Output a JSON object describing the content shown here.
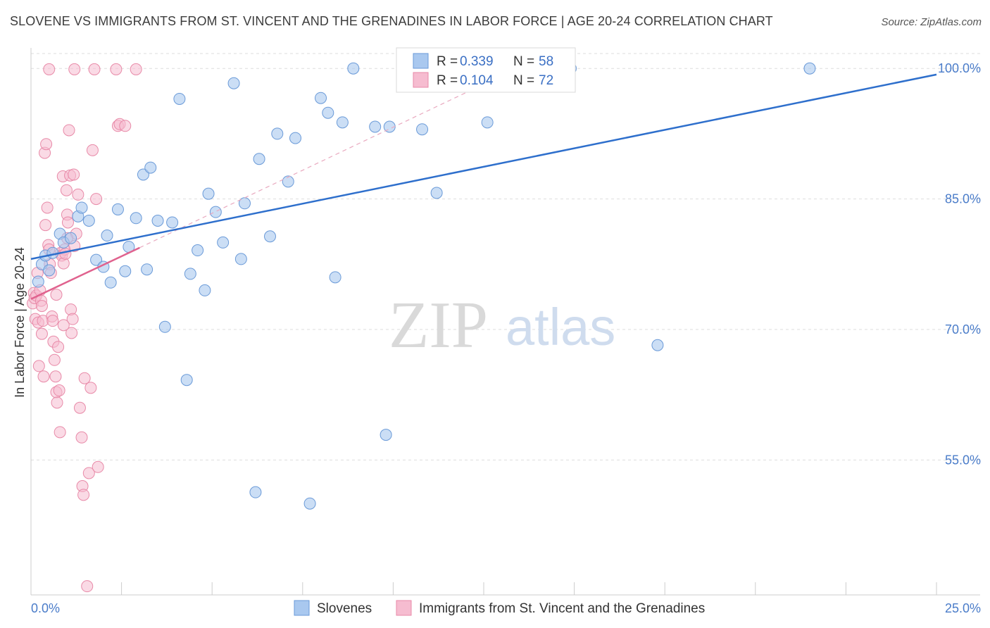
{
  "title": "SLOVENE VS IMMIGRANTS FROM ST. VINCENT AND THE GRENADINES IN LABOR FORCE | AGE 20-24 CORRELATION CHART",
  "source": "Source: ZipAtlas.com",
  "watermark": {
    "zip": "ZIP",
    "atlas": "atlas"
  },
  "colors": {
    "blue_fill": "#a9c8ef",
    "blue_stroke": "#6a9ad8",
    "blue_line": "#2e6fcc",
    "pink_fill": "#f6bcd0",
    "pink_stroke": "#e88aa8",
    "pink_line": "#e0628e",
    "axis_text": "#4a7cc9",
    "grid": "#dddddd"
  },
  "legend": {
    "rows": [
      {
        "r_label": "R = ",
        "r_value": "0.339",
        "n_label": "N = ",
        "n_value": "58"
      },
      {
        "r_label": "R = ",
        "r_value": "0.104",
        "n_label": "N = ",
        "n_value": "72"
      }
    ]
  },
  "bottom_legend": [
    "Slovenes",
    "Immigrants from St. Vincent and the Grenadines"
  ],
  "chart_data": {
    "type": "scatter",
    "title": "SLOVENE VS IMMIGRANTS FROM ST. VINCENT AND THE GRENADINES IN LABOR FORCE | AGE 20-24 CORRELATION CHART",
    "xlabel": "",
    "ylabel": "In Labor Force | Age 20-24",
    "xlim": [
      0,
      25
    ],
    "ylim": [
      39.5,
      102.2
    ],
    "x_tick_labels": [
      {
        "value": 0,
        "label": "0.0%"
      },
      {
        "value": 25,
        "label": "25.0%"
      }
    ],
    "y_ticks": [
      {
        "value": 55,
        "label": "55.0%"
      },
      {
        "value": 70,
        "label": "70.0%"
      },
      {
        "value": 85,
        "label": "85.0%"
      },
      {
        "value": 100,
        "label": "100.0%"
      }
    ],
    "x_minor_ticks": [
      2.5,
      5,
      7.5,
      10,
      12.5,
      15,
      17.5,
      20,
      22.5
    ],
    "series": [
      {
        "name": "Slovenes",
        "R": 0.339,
        "N": 58,
        "trend": {
          "x0": 0,
          "y0": 78.1,
          "x1": 25,
          "y1": 99.3
        },
        "points": [
          [
            0.2,
            75.5
          ],
          [
            0.3,
            77.5
          ],
          [
            0.4,
            78.5
          ],
          [
            0.5,
            76.8
          ],
          [
            0.6,
            78.8
          ],
          [
            0.8,
            81
          ],
          [
            0.9,
            80
          ],
          [
            1.1,
            80.5
          ],
          [
            1.3,
            83
          ],
          [
            1.4,
            84
          ],
          [
            1.6,
            82.5
          ],
          [
            1.8,
            78
          ],
          [
            2,
            77.2
          ],
          [
            2.1,
            80.8
          ],
          [
            2.2,
            75.4
          ],
          [
            2.4,
            83.8
          ],
          [
            2.6,
            76.7
          ],
          [
            2.7,
            79.5
          ],
          [
            2.9,
            82.8
          ],
          [
            3.1,
            87.8
          ],
          [
            3.3,
            88.6
          ],
          [
            3.2,
            76.9
          ],
          [
            3.5,
            82.5
          ],
          [
            3.7,
            70.3
          ],
          [
            3.9,
            82.3
          ],
          [
            4.1,
            96.5
          ],
          [
            4.3,
            64.2
          ],
          [
            4.4,
            76.4
          ],
          [
            4.6,
            79.1
          ],
          [
            4.8,
            74.5
          ],
          [
            4.9,
            85.6
          ],
          [
            5.1,
            83.5
          ],
          [
            5.3,
            80
          ],
          [
            5.6,
            98.3
          ],
          [
            5.8,
            78.1
          ],
          [
            5.9,
            84.5
          ],
          [
            6.2,
            51.3
          ],
          [
            6.3,
            89.6
          ],
          [
            6.6,
            80.7
          ],
          [
            6.8,
            92.5
          ],
          [
            7.1,
            87
          ],
          [
            7.3,
            92
          ],
          [
            7.7,
            50
          ],
          [
            8,
            96.6
          ],
          [
            8.2,
            94.9
          ],
          [
            8.4,
            76
          ],
          [
            8.6,
            93.8
          ],
          [
            8.9,
            100
          ],
          [
            9.5,
            93.3
          ],
          [
            9.9,
            93.3
          ],
          [
            9.8,
            57.9
          ],
          [
            10.8,
            93
          ],
          [
            11.2,
            85.7
          ],
          [
            12.2,
            100
          ],
          [
            12.6,
            93.8
          ],
          [
            14.9,
            100
          ],
          [
            17.3,
            68.2
          ],
          [
            21.5,
            100
          ]
        ]
      },
      {
        "name": "Immigrants from St. Vincent and the Grenadines",
        "R": 0.104,
        "N": 72,
        "trend": {
          "x0": 0,
          "y0": 73.5,
          "x1": 3,
          "y1": 79.4
        },
        "dashed_trend": {
          "x0": 3,
          "y0": 79.4,
          "x1": 12,
          "y1": 97.2
        },
        "points": [
          [
            0.05,
            73
          ],
          [
            0.08,
            74.2
          ],
          [
            0.1,
            73.6
          ],
          [
            0.12,
            71.2
          ],
          [
            0.15,
            73.9
          ],
          [
            0.18,
            76.5
          ],
          [
            0.2,
            70.8
          ],
          [
            0.22,
            65.8
          ],
          [
            0.25,
            74.5
          ],
          [
            0.28,
            73.3
          ],
          [
            0.3,
            72.7
          ],
          [
            0.33,
            71
          ],
          [
            0.35,
            64.6
          ],
          [
            0.38,
            90.3
          ],
          [
            0.4,
            82
          ],
          [
            0.42,
            91.3
          ],
          [
            0.45,
            84
          ],
          [
            0.48,
            79.7
          ],
          [
            0.5,
            79.2
          ],
          [
            0.52,
            77.5
          ],
          [
            0.55,
            76.5
          ],
          [
            0.58,
            71.5
          ],
          [
            0.6,
            71
          ],
          [
            0.62,
            68.6
          ],
          [
            0.65,
            66.5
          ],
          [
            0.68,
            64.6
          ],
          [
            0.7,
            62.8
          ],
          [
            0.72,
            61.6
          ],
          [
            0.75,
            68
          ],
          [
            0.78,
            63
          ],
          [
            0.8,
            58.2
          ],
          [
            0.82,
            78.8
          ],
          [
            0.85,
            78.5
          ],
          [
            0.88,
            87.6
          ],
          [
            0.9,
            77.6
          ],
          [
            0.93,
            79.2
          ],
          [
            0.95,
            78.7
          ],
          [
            0.98,
            86
          ],
          [
            1.0,
            83.2
          ],
          [
            1.02,
            82.3
          ],
          [
            1.05,
            92.9
          ],
          [
            1.08,
            87.7
          ],
          [
            1.1,
            72.3
          ],
          [
            1.12,
            69.6
          ],
          [
            1.15,
            71.2
          ],
          [
            1.18,
            87.8
          ],
          [
            1.2,
            79.6
          ],
          [
            1.25,
            81
          ],
          [
            1.3,
            85.5
          ],
          [
            1.35,
            61
          ],
          [
            1.4,
            57.6
          ],
          [
            1.42,
            52
          ],
          [
            1.45,
            51
          ],
          [
            1.48,
            64.4
          ],
          [
            1.55,
            40.5
          ],
          [
            1.6,
            53.5
          ],
          [
            1.65,
            63.3
          ],
          [
            1.7,
            90.6
          ],
          [
            1.75,
            99.9
          ],
          [
            1.8,
            85
          ],
          [
            1.85,
            54.2
          ],
          [
            2.35,
            99.9
          ],
          [
            2.4,
            93.4
          ],
          [
            2.45,
            93.6
          ],
          [
            2.6,
            93.4
          ],
          [
            2.9,
            99.9
          ],
          [
            0.5,
            99.9
          ],
          [
            1.2,
            99.9
          ],
          [
            0.3,
            69.5
          ],
          [
            0.7,
            74
          ],
          [
            1.0,
            80.5
          ],
          [
            0.9,
            70.5
          ]
        ]
      }
    ]
  }
}
